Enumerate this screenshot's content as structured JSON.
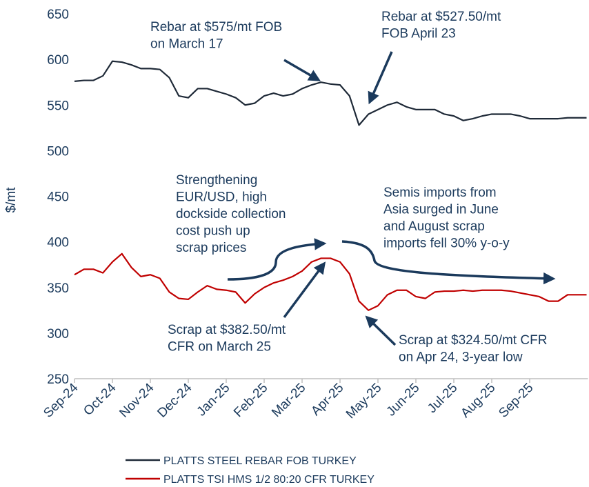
{
  "chart_data": {
    "type": "line",
    "y_label": "$/mt",
    "categories": [
      "Sep-24",
      null,
      null,
      null,
      "Oct-24",
      null,
      null,
      null,
      "Nov-24",
      null,
      null,
      null,
      "Dec-24",
      null,
      null,
      null,
      "Jan-25",
      null,
      null,
      null,
      "Feb-25",
      null,
      null,
      null,
      "Mar-25",
      null,
      null,
      null,
      "Apr-25",
      null,
      null,
      null,
      "May-25",
      null,
      null,
      null,
      "Jun-25",
      null,
      null,
      null,
      "Jul-25",
      null,
      null,
      null,
      "Aug-25",
      null,
      null,
      null,
      "Sep-25",
      null,
      null,
      null,
      null,
      null,
      null
    ],
    "series": [
      {
        "name": "PLATTS STEEL REBAR FOB TURKEY",
        "color": "#1f2a38",
        "values": [
          576,
          577,
          577,
          582,
          598,
          597,
          594,
          590,
          590,
          589,
          580,
          560,
          558,
          568,
          568,
          565,
          562,
          558,
          550,
          552,
          560,
          563,
          560,
          562,
          568,
          572,
          575,
          573,
          572,
          560,
          528,
          540,
          545,
          550,
          553,
          548,
          545,
          545,
          545,
          540,
          538,
          533,
          535,
          538,
          540,
          540,
          540,
          538,
          535,
          535,
          535,
          535,
          536,
          536,
          536
        ]
      },
      {
        "name": "PLATTS TSI HMS 1/2 80:20 CFR TURKEY",
        "color": "#c00000",
        "values": [
          364,
          370,
          370,
          366,
          378,
          387,
          372,
          362,
          364,
          360,
          345,
          338,
          337,
          345,
          352,
          348,
          347,
          345,
          333,
          343,
          350,
          355,
          358,
          362,
          368,
          378,
          382,
          382,
          378,
          365,
          335,
          325,
          330,
          342,
          347,
          347,
          340,
          338,
          345,
          346,
          346,
          347,
          346,
          347,
          347,
          347,
          346,
          344,
          342,
          340,
          335,
          335,
          342,
          342,
          342
        ]
      }
    ],
    "ylim": [
      250,
      650
    ],
    "yticks": [
      250,
      300,
      350,
      400,
      450,
      500,
      550,
      600,
      650
    ],
    "legend": "bottom",
    "annotations": [
      {
        "lines": [
          "Rebar at $575/mt FOB",
          "on March 17"
        ]
      },
      {
        "lines": [
          "Rebar at $527.50/mt",
          "FOB April 23"
        ]
      },
      {
        "lines": [
          "Strengthening",
          "EUR/USD, high",
          "dockside collection",
          "cost push up",
          "scrap prices"
        ]
      },
      {
        "lines": [
          "Semis imports from",
          "Asia surged in June",
          "and August scrap",
          "imports fell 30% y-o-y"
        ]
      },
      {
        "lines": [
          "Scrap at $382.50/mt",
          "CFR on March 25"
        ]
      },
      {
        "lines": [
          "Scrap at $324.50/mt CFR",
          "on Apr 24, 3-year low"
        ]
      }
    ]
  }
}
